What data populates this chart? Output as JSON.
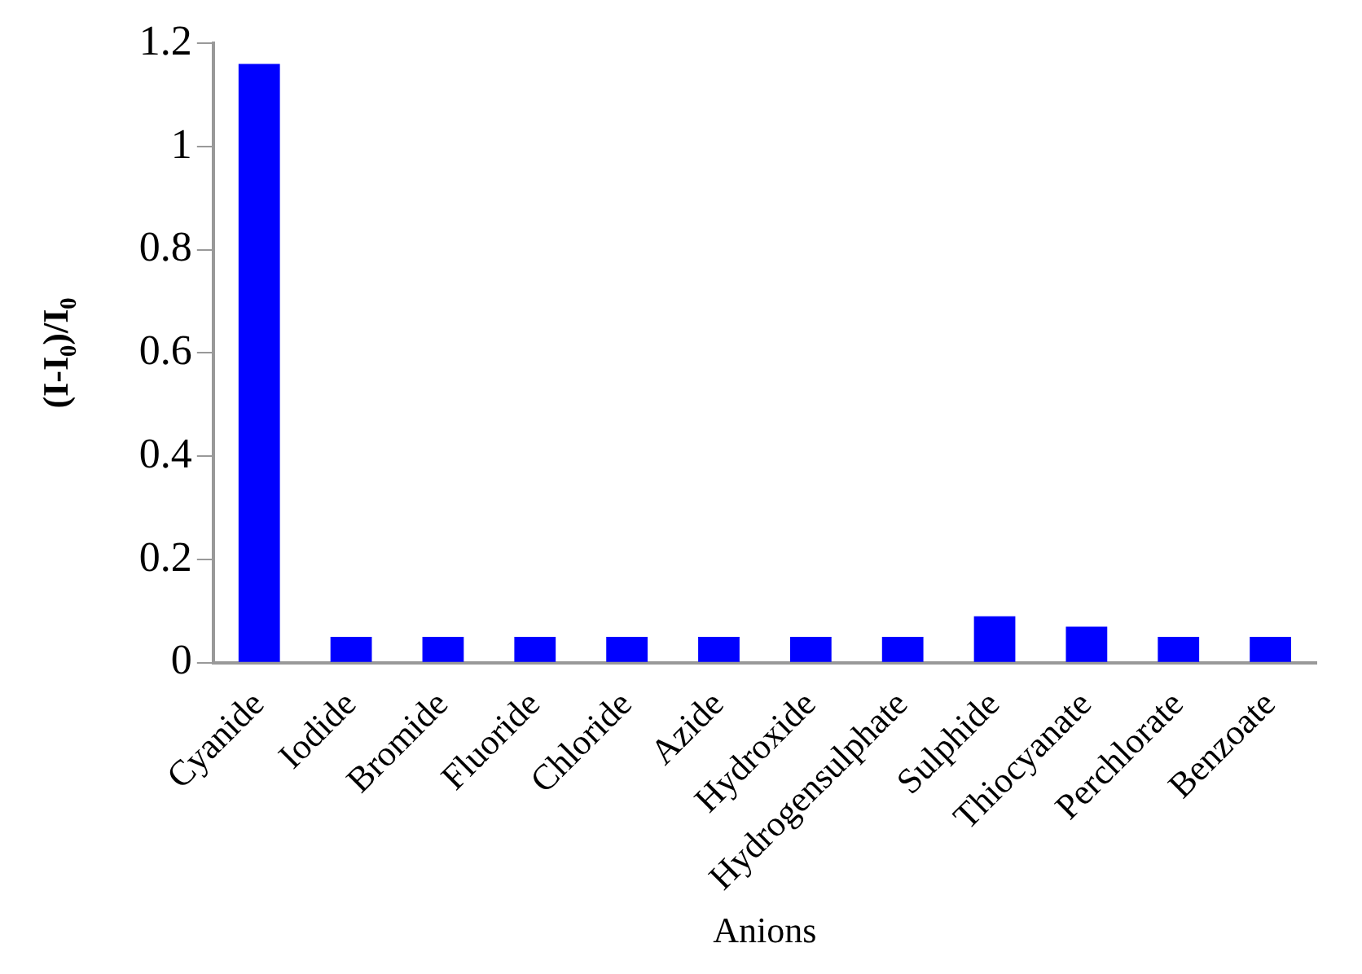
{
  "chart_data": {
    "type": "bar",
    "xlabel": "Anions",
    "ylabel": "(I-I$_{0}$)/I$_{0}$",
    "categories": [
      "Cyanide",
      "Iodide",
      "Bromide",
      "Fluoride",
      "Chloride",
      "Azide",
      "Hydroxide",
      "Hydrogensulphate",
      "Sulphide",
      "Thiocyanate",
      "Perchlorate",
      "Benzoate"
    ],
    "values": [
      1.16,
      0.05,
      0.05,
      0.05,
      0.05,
      0.05,
      0.05,
      0.05,
      0.09,
      0.07,
      0.05,
      0.05
    ],
    "color": "#0000ff",
    "ylim": [
      0,
      1.2
    ],
    "yticks": [
      0,
      0.2,
      0.4,
      0.6,
      0.8,
      1,
      1.2
    ],
    "grid": false,
    "legend": false
  }
}
